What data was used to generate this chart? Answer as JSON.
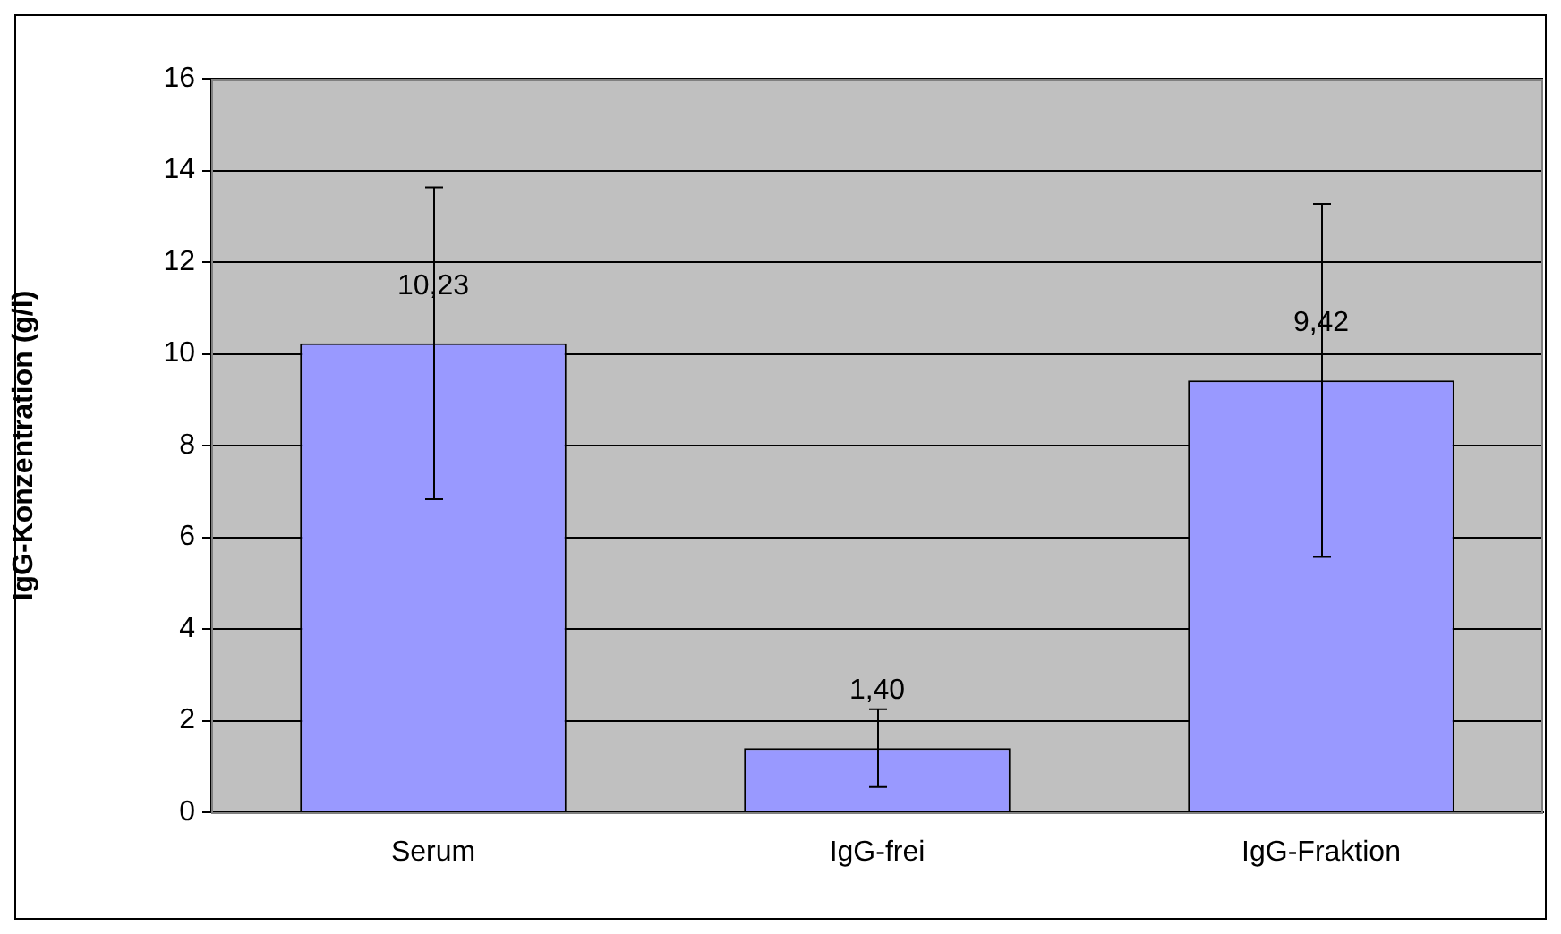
{
  "chart_data": {
    "type": "bar",
    "ylabel": "IgG-Konzentration (g/l)",
    "categories": [
      "Serum",
      "IgG-frei",
      "IgG-Fraktion"
    ],
    "values": [
      10.23,
      1.4,
      9.42
    ],
    "errors": [
      3.4,
      0.85,
      3.85
    ],
    "value_labels": [
      "10,23",
      "1,40",
      "9,42"
    ],
    "color": "#9999ff",
    "ylim": [
      0,
      16
    ],
    "yticks": [
      0,
      2,
      4,
      6,
      8,
      10,
      12,
      14,
      16
    ],
    "grid": "y",
    "legend": false
  }
}
